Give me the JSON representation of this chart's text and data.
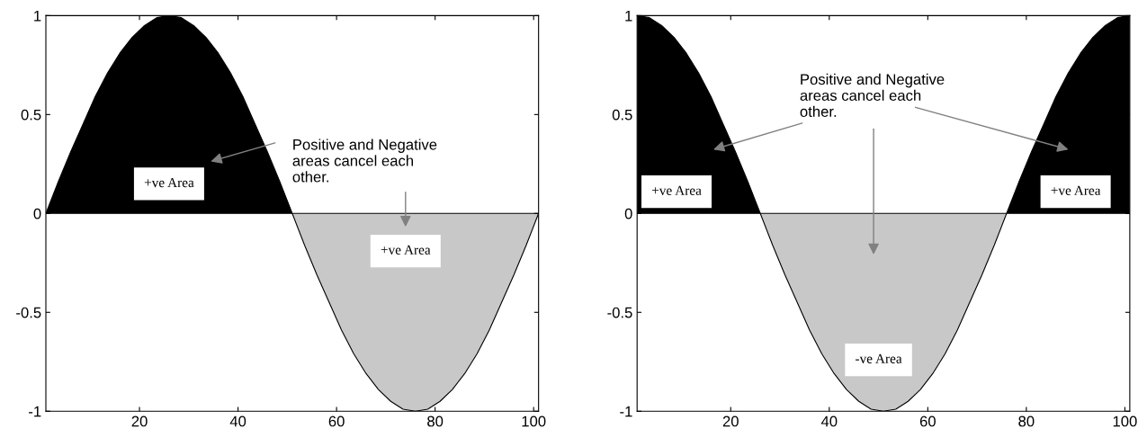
{
  "chart_data": [
    {
      "type": "area",
      "x": [
        1,
        3.5,
        6,
        8.5,
        11,
        13.5,
        16,
        18.5,
        21,
        23.5,
        26,
        28.5,
        31,
        33.5,
        36,
        38.5,
        41,
        43.5,
        46,
        48.5,
        51,
        53.5,
        56,
        58.5,
        61,
        63.5,
        66,
        68.5,
        71,
        73.5,
        76,
        78.5,
        81,
        83.5,
        86,
        88.5,
        91,
        93.5,
        96,
        98.5,
        101
      ],
      "series": [
        {
          "color": "#000000",
          "values": [
            0,
            0.16,
            0.31,
            0.45,
            0.59,
            0.71,
            0.81,
            0.89,
            0.95,
            0.99,
            1,
            0.99,
            0.95,
            0.89,
            0.81,
            0.71,
            0.59,
            0.45,
            0.31,
            0.16,
            0,
            0,
            0,
            0,
            0,
            0,
            0,
            0,
            0,
            0,
            0,
            0,
            0,
            0,
            0,
            0,
            0,
            0,
            0,
            0,
            0
          ]
        },
        {
          "color": "#c8c8c8",
          "values": [
            0,
            0,
            0,
            0,
            0,
            0,
            0,
            0,
            0,
            0,
            0,
            0,
            0,
            0,
            0,
            0,
            0,
            0,
            0,
            0,
            0,
            -0.16,
            -0.31,
            -0.45,
            -0.59,
            -0.71,
            -0.81,
            -0.89,
            -0.95,
            -0.99,
            -1,
            -0.99,
            -0.95,
            -0.89,
            -0.81,
            -0.71,
            -0.59,
            -0.45,
            -0.31,
            -0.16,
            0
          ]
        }
      ],
      "xlim": [
        1,
        101
      ],
      "ylim": [
        -1,
        1
      ],
      "xticks": [
        20,
        40,
        60,
        80,
        100
      ],
      "yticks": [
        -1,
        -0.5,
        0,
        0.5,
        1
      ],
      "grid": false,
      "legend": false,
      "annotations": [
        "Positive and Negative\nareas cancel each\nother.",
        "+ve Area",
        "+ve Area"
      ]
    },
    {
      "type": "area",
      "x": [
        1,
        3.5,
        6,
        8.5,
        11,
        13.5,
        16,
        18.5,
        21,
        23.5,
        26,
        28.5,
        31,
        33.5,
        36,
        38.5,
        41,
        43.5,
        46,
        48.5,
        51,
        53.5,
        56,
        58.5,
        61,
        63.5,
        66,
        68.5,
        71,
        73.5,
        76,
        78.5,
        81,
        83.5,
        86,
        88.5,
        91,
        93.5,
        96,
        98.5,
        101
      ],
      "series": [
        {
          "color": "#000000",
          "values": [
            1,
            0.99,
            0.95,
            0.89,
            0.81,
            0.71,
            0.59,
            0.45,
            0.31,
            0.16,
            0,
            0,
            0,
            0,
            0,
            0,
            0,
            0,
            0,
            0,
            0,
            0,
            0,
            0,
            0,
            0,
            0,
            0,
            0,
            0,
            0,
            0.16,
            0.31,
            0.45,
            0.59,
            0.71,
            0.81,
            0.89,
            0.95,
            0.99,
            1
          ]
        },
        {
          "color": "#c8c8c8",
          "values": [
            0,
            0,
            0,
            0,
            0,
            0,
            0,
            0,
            0,
            0,
            0,
            -0.16,
            -0.31,
            -0.45,
            -0.59,
            -0.71,
            -0.81,
            -0.89,
            -0.95,
            -0.99,
            -1,
            -0.99,
            -0.95,
            -0.89,
            -0.81,
            -0.71,
            -0.59,
            -0.45,
            -0.31,
            -0.16,
            0,
            0,
            0,
            0,
            0,
            0,
            0,
            0,
            0,
            0,
            0
          ]
        }
      ],
      "xlim": [
        1,
        101
      ],
      "ylim": [
        -1,
        1
      ],
      "xticks": [
        20,
        40,
        60,
        80,
        100
      ],
      "yticks": [
        -1,
        -0.5,
        0,
        0.5,
        1
      ],
      "grid": false,
      "legend": false,
      "annotations": [
        "Positive and Negative\nareas cancel each\nother.",
        "+ve Area",
        "-ve Area",
        "+ve Area"
      ]
    }
  ]
}
